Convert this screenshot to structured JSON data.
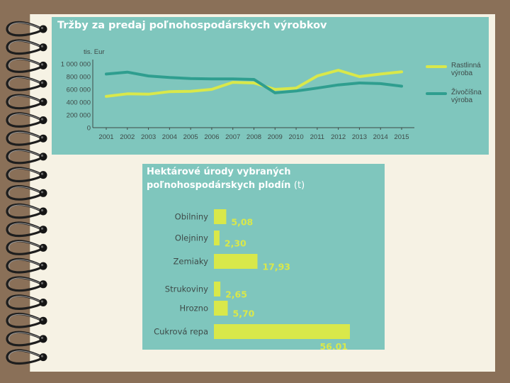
{
  "colors": {
    "panel": "#7fc6bd",
    "rastlinna": "#d9e84a",
    "zivocisna": "#2f9e8f",
    "bar": "#d9e84a",
    "text": "#3e4a48"
  },
  "chart_data": [
    {
      "type": "line",
      "title": "Tržby za predaj poľnohospodárskych výrobkov",
      "ylabel": "tis. Eur",
      "xlabel": "",
      "x": [
        "2001",
        "2002",
        "2003",
        "2004",
        "2005",
        "2006",
        "2007",
        "2008",
        "2009",
        "2010",
        "2011",
        "2012",
        "2013",
        "2014",
        "2015"
      ],
      "ylim": [
        0,
        1000000
      ],
      "yticks": [
        "1 000 000",
        "800 000",
        "600 000",
        "400 000",
        "200 000",
        "0"
      ],
      "ytick_values": [
        1000000,
        800000,
        600000,
        400000,
        200000,
        0
      ],
      "grid": false,
      "legend_position": "right",
      "series": [
        {
          "name": "Rastlinná výroba",
          "name_lines": [
            "Rastlinná",
            "výroba"
          ],
          "values": [
            490000,
            530000,
            525000,
            565000,
            570000,
            600000,
            710000,
            700000,
            600000,
            620000,
            810000,
            900000,
            800000,
            840000,
            875000
          ]
        },
        {
          "name": "Živočíšna výroba",
          "name_lines": [
            "Živočíšna",
            "výroba"
          ],
          "values": [
            840000,
            870000,
            810000,
            785000,
            770000,
            765000,
            765000,
            755000,
            545000,
            575000,
            620000,
            670000,
            700000,
            690000,
            650000
          ]
        }
      ]
    },
    {
      "type": "bar",
      "orientation": "horizontal",
      "title": "Hektárové úrody vybraných poľnohospodárskych plodín",
      "unit": "(t)",
      "categories": [
        "Obilniny",
        "Olejniny",
        "Zemiaky",
        "Strukoviny",
        "Hrozno",
        "Cukrová repa"
      ],
      "values": [
        5.08,
        2.3,
        17.93,
        2.65,
        5.7,
        56.01
      ],
      "value_labels": [
        "5,08",
        "2,30",
        "17,93",
        "2,65",
        "5,70",
        "56,01"
      ],
      "xlim": [
        0,
        56.01
      ]
    }
  ]
}
